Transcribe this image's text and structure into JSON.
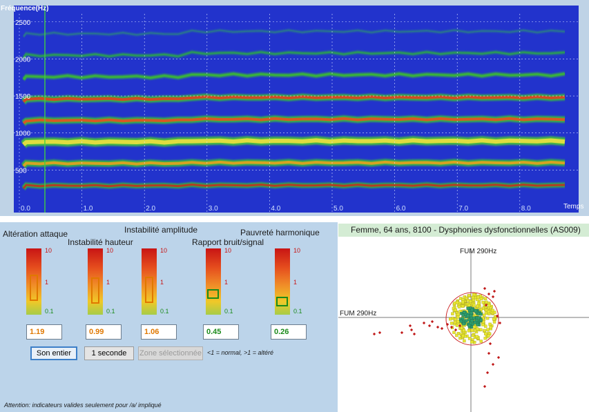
{
  "spectrogram": {
    "y_label": "Fréquence(Hz)",
    "x_label": "Temps",
    "y_ticks": [
      "500",
      "1000",
      "1500",
      "2000",
      "2500"
    ],
    "x_ticks": [
      "0.0",
      "1.0",
      "2.0",
      "3.0",
      "4.0",
      "5.0",
      "6.0",
      "7.0",
      "8.0"
    ],
    "harmonics_hz": [
      290,
      590,
      880,
      1170,
      1460,
      1760,
      2050,
      2340
    ],
    "background_color": "#2233cc"
  },
  "metrics": {
    "headers": {
      "alteration_attaque": "Altération attaque",
      "instabilite_hauteur": "Instabilité hauteur",
      "instabilite_amplitude": "Instabilité amplitude",
      "rapport_bruit_signal": "Rapport bruit/signal",
      "pauvrete_harmonique": "Pauvreté harmonique"
    },
    "scale_labels": [
      "10",
      "1",
      "0.1"
    ],
    "gauges": [
      {
        "value": "1.19",
        "level": 1.19,
        "color": "#e07800"
      },
      {
        "value": "0.99",
        "level": 0.99,
        "color": "#e07800"
      },
      {
        "value": "1.06",
        "level": 1.06,
        "color": "#e07800"
      },
      {
        "value": "0.45",
        "level": 0.45,
        "color": "#1a8a1a"
      },
      {
        "value": "0.26",
        "level": 0.26,
        "color": "#1a8a1a"
      }
    ],
    "buttons": {
      "son_entier": "Son entier",
      "une_seconde": "1 seconde",
      "zone": "Zone sélectionnée"
    },
    "hint": "<1 = normal, >1 = altéré",
    "footer": "Attention: indicateurs valides seulement pour  /a/ impliqué"
  },
  "scatter": {
    "title": "Femme, 64 ans, 8100 -  Dysphonies dysfonctionnelles (AS009)",
    "axis_top_label": "FUM 290Hz",
    "axis_left_label": "FUM 290Hz",
    "circle_color": "#cc2020",
    "point_color_yellow": "#e8e830",
    "point_color_green": "#2e9e6e",
    "point_color_red": "#c01818"
  }
}
